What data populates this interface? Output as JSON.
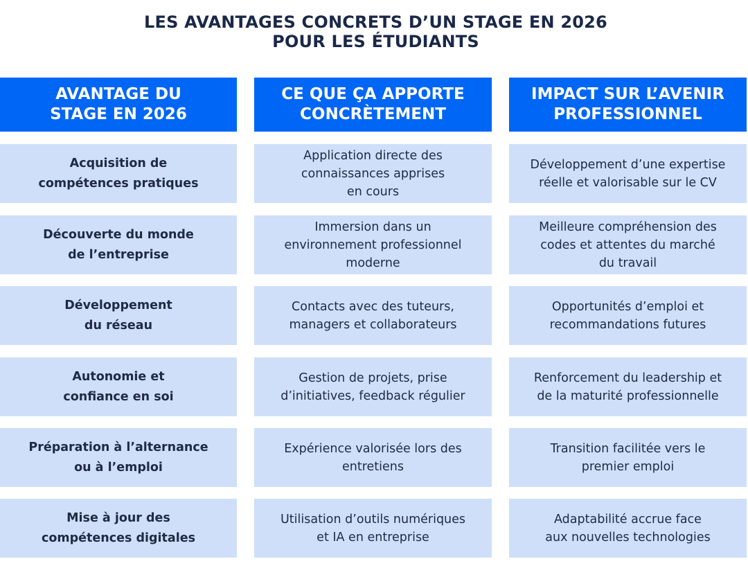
{
  "title": "LES AVANTAGES CONCRETS D’UN STAGE EN 2026\nPOUR LES ÉTUDIANTS",
  "colors": {
    "header": "#0066f5",
    "cell": "#cfdff9",
    "text": "#1c2640"
  },
  "headers": [
    "AVANTAGE DU\nSTAGE EN 2026",
    "CE QUE ÇA APPORTE\nCONCRÈTEMENT",
    "IMPACT SUR L’AVENIR\nPROFESSIONNEL"
  ],
  "rows": [
    [
      "Acquisition de\ncompétences pratiques",
      "Application directe des\nconnaissances apprises\nen cours",
      "Développement d’une expertise\nréelle et valorisable sur le CV"
    ],
    [
      "Découverte du monde\nde l’entreprise",
      "Immersion dans un\nenvironnement professionnel\nmoderne",
      "Meilleure compréhension des\ncodes et attentes du marché\ndu travail"
    ],
    [
      "Développement\ndu réseau",
      "Contacts avec des tuteurs,\nmanagers et collaborateurs",
      "Opportunités d’emploi et\nrecommandations futures"
    ],
    [
      "Autonomie et\nconfiance en soi",
      "Gestion de projets, prise\nd’initiatives, feedback régulier",
      "Renforcement du leadership et\nde la maturité professionnelle"
    ],
    [
      "Préparation à l’alternance\nou à l’emploi",
      "Expérience valorisée lors des\nentretiens",
      "Transition facilitée vers le\npremier emploi"
    ],
    [
      "Mise à jour des\ncompétences digitales",
      "Utilisation d’outils numériques\net IA en entreprise",
      "Adaptabilité accrue face\naux nouvelles technologies"
    ]
  ]
}
